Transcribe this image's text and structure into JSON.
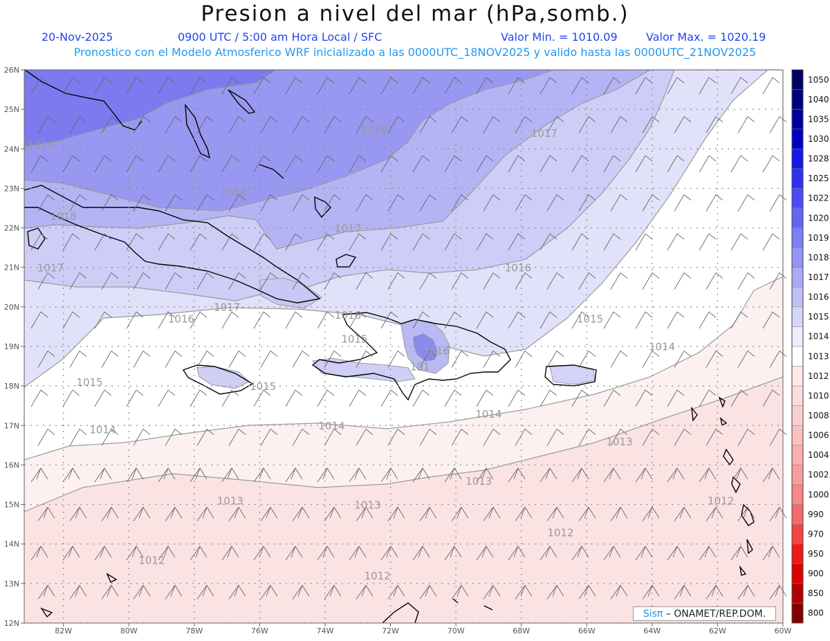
{
  "title": "Presion a nivel del mar (hPa,somb.)",
  "subtitle": {
    "date": "20-Nov-2025",
    "time": "0900 UTC / 5:00 am Hora Local / SFC",
    "min": "Valor Min. = 1010.09",
    "max": "Valor Max. = 1020.19",
    "model_note": "Pronostico con el Modelo Atmosferico WRF inicializado a las 0000UTC_18NOV2025 y valido hasta las  0000UTC_21NOV2025"
  },
  "axes": {
    "lat_labels": [
      "26N",
      "25N",
      "24N",
      "23N",
      "22N",
      "21N",
      "20N",
      "19N",
      "18N",
      "17N",
      "16N",
      "15N",
      "14N",
      "13N",
      "12N"
    ],
    "lon_labels": [
      "82W",
      "80W",
      "78W",
      "76W",
      "74W",
      "72W",
      "70W",
      "68W",
      "66W",
      "64W",
      "62W",
      "60W"
    ]
  },
  "colorbar": {
    "levels": [
      "1050",
      "1040",
      "1035",
      "1030",
      "1028",
      "1025",
      "1022",
      "1020",
      "1019",
      "1018",
      "1017",
      "1016",
      "1015",
      "1014",
      "1013",
      "1012",
      "1010",
      "1008",
      "1006",
      "1004",
      "1002",
      "1000",
      "990",
      "970",
      "950",
      "900",
      "850",
      "800"
    ],
    "colors": [
      "#000060",
      "#00007e",
      "#00009c",
      "#0000c0",
      "#1818e8",
      "#3030f0",
      "#4b4bf4",
      "#6464f7",
      "#7e7ef7",
      "#9494f7",
      "#aaaaf5",
      "#c0c0f7",
      "#d6d6f9",
      "#ececfc",
      "#ffffff",
      "#fde8e8",
      "#fcdcdc",
      "#fbcfcf",
      "#fbc1c1",
      "#fab0b0",
      "#f99e9e",
      "#f88888",
      "#f56a6a",
      "#f24444",
      "#ee1a1a",
      "#dd0000",
      "#b20000",
      "#840000"
    ]
  },
  "pressure_fills": {
    "1019": "#7b7bef",
    "1018": "#9898f2",
    "1017": "#b4b4f5",
    "1016": "#cdcdf7",
    "1015": "#e1e1fa",
    "1014": "#ffffff",
    "1013": "#fdf0f0",
    "1012": "#fbe3e3"
  },
  "contour_labels": [
    {
      "text": "1019",
      "lat": 24.0,
      "lon": -82.7
    },
    {
      "text": "1018",
      "lat": 24.4,
      "lon": -72.5
    },
    {
      "text": "1017",
      "lat": 24.3,
      "lon": -67.3
    },
    {
      "text": "1018",
      "lat": 22.8,
      "lon": -76.8
    },
    {
      "text": "1018",
      "lat": 22.2,
      "lon": -82.0
    },
    {
      "text": "1017",
      "lat": 21.9,
      "lon": -73.3
    },
    {
      "text": "1017",
      "lat": 20.9,
      "lon": -82.4
    },
    {
      "text": "1016",
      "lat": 20.9,
      "lon": -68.1
    },
    {
      "text": "1017",
      "lat": 19.9,
      "lon": -77.0
    },
    {
      "text": "1016",
      "lat": 19.6,
      "lon": -78.4
    },
    {
      "text": "1016",
      "lat": 19.7,
      "lon": -73.3
    },
    {
      "text": "1015",
      "lat": 19.6,
      "lon": -65.9
    },
    {
      "text": "1015",
      "lat": 19.1,
      "lon": -73.1
    },
    {
      "text": "1016",
      "lat": 18.8,
      "lon": -70.6
    },
    {
      "text": "1014",
      "lat": 18.9,
      "lon": -63.7
    },
    {
      "text": "101",
      "lat": 18.4,
      "lon": -71.1
    },
    {
      "text": "1015",
      "lat": 18.0,
      "lon": -81.2
    },
    {
      "text": "1015",
      "lat": 17.9,
      "lon": -75.9
    },
    {
      "text": "1014",
      "lat": 17.2,
      "lon": -69.0
    },
    {
      "text": "1014",
      "lat": 16.8,
      "lon": -80.8
    },
    {
      "text": "1014",
      "lat": 16.9,
      "lon": -73.8
    },
    {
      "text": "1013",
      "lat": 16.5,
      "lon": -65.0
    },
    {
      "text": "1013",
      "lat": 15.5,
      "lon": -69.3
    },
    {
      "text": "1013",
      "lat": 15.0,
      "lon": -76.9
    },
    {
      "text": "1013",
      "lat": 14.9,
      "lon": -72.7
    },
    {
      "text": "1012",
      "lat": 15.0,
      "lon": -61.9
    },
    {
      "text": "1012",
      "lat": 14.2,
      "lon": -66.8
    },
    {
      "text": "1012",
      "lat": 13.5,
      "lon": -79.3
    },
    {
      "text": "1012",
      "lat": 13.1,
      "lon": -72.4
    }
  ],
  "credit": {
    "logo": "Sisπ",
    "text": "– ONAMET/REP.DOM."
  }
}
